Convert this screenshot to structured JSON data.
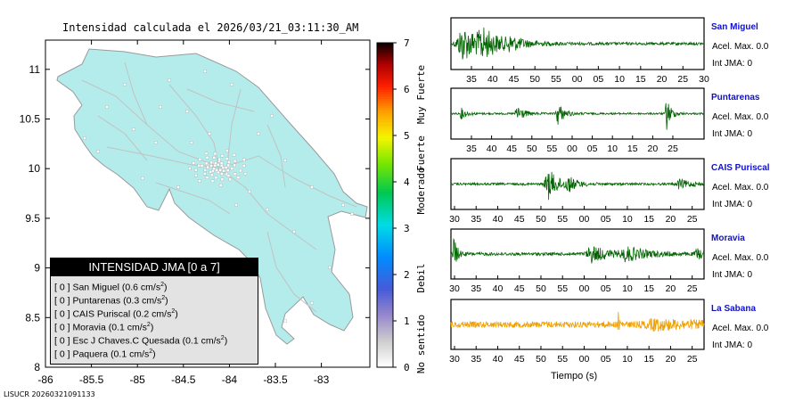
{
  "title": "Intensidad calculada el 2026/03/21_03:11:30_AM",
  "footer": "LISUCR 20260321091133",
  "map": {
    "x_ticks": [
      "-86",
      "-85.5",
      "-85",
      "-84.5",
      "-84",
      "-83.5",
      "-83"
    ],
    "y_ticks": [
      "8",
      "8.5",
      "9",
      "9.5",
      "10",
      "10.5",
      "11"
    ],
    "colors": {
      "land": "#b4ecec",
      "road": "#c2c2c2",
      "station": "#ffffff"
    }
  },
  "legend": {
    "title": "INTENSIDAD JMA [0 a 7]",
    "items": [
      {
        "level": "[ 0 ]",
        "name": "San Miguel",
        "value": "(0.6 cm/s",
        "exp": "2",
        "close": ")"
      },
      {
        "level": "[ 0 ]",
        "name": "Puntarenas",
        "value": "(0.3 cm/s",
        "exp": "2",
        "close": ")"
      },
      {
        "level": "[ 0 ]",
        "name": "CAIS Puriscal",
        "value": "(0.2 cm/s",
        "exp": "2",
        "close": ")"
      },
      {
        "level": "[ 0 ]",
        "name": "Moravia",
        "value": "(0.1 cm/s",
        "exp": "2",
        "close": ")"
      },
      {
        "level": "[ 0 ]",
        "name": "Esc J Chaves.C Quesada",
        "value": "(0.1 cm/s",
        "exp": "2",
        "close": ")"
      },
      {
        "level": "[ 0 ]",
        "name": "Paquera",
        "value": "(0.1 cm/s",
        "exp": "2",
        "close": ")"
      }
    ]
  },
  "colorbar": {
    "ticks": [
      "0",
      "1",
      "2",
      "3",
      "4",
      "5",
      "6",
      "7"
    ],
    "labels": [
      "No sentido",
      "Debil",
      "Moderado",
      "Fuerte",
      "Muy Fuerte"
    ]
  },
  "stations": [
    {
      "name": "San Miguel",
      "acel": "Acel. Max. 0.0",
      "int": "Int JMA: 0",
      "color": "#006400",
      "ticks": [
        "35",
        "40",
        "45",
        "50",
        "55",
        "00",
        "05",
        "10",
        "15",
        "20",
        "25",
        "30"
      ]
    },
    {
      "name": "Puntarenas",
      "acel": "Acel. Max. 0.0",
      "int": "Int JMA: 0",
      "color": "#006400",
      "ticks": [
        "35",
        "40",
        "45",
        "50",
        "55",
        "00",
        "05",
        "10",
        "15",
        "20",
        "25"
      ]
    },
    {
      "name": "CAIS Puriscal",
      "acel": "Acel. Max. 0.0",
      "int": "Int JMA: 0",
      "color": "#006400",
      "ticks": [
        "30",
        "35",
        "40",
        "45",
        "50",
        "55",
        "00",
        "05",
        "10",
        "15",
        "20",
        "25"
      ]
    },
    {
      "name": "Moravia",
      "acel": "Acel. Max. 0.0",
      "int": "Int JMA: 0",
      "color": "#006400",
      "ticks": [
        "30",
        "35",
        "40",
        "45",
        "50",
        "55",
        "00",
        "05",
        "10",
        "15",
        "20",
        "25"
      ]
    },
    {
      "name": "La Sabana",
      "acel": "Acel. Max. 0.0",
      "int": "Int JMA: 0",
      "color": "#f0a000",
      "ticks": [
        "30",
        "35",
        "40",
        "45",
        "50",
        "55",
        "00",
        "05",
        "10",
        "15",
        "20",
        "25"
      ]
    }
  ],
  "xlabel": "Tiempo (s)"
}
